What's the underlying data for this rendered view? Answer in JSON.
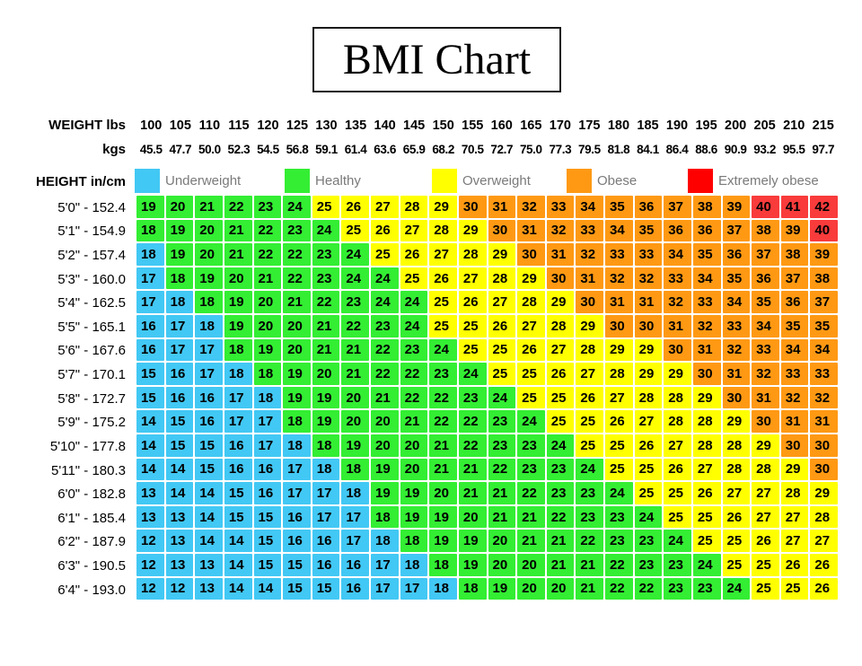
{
  "title": "BMI Chart",
  "header": {
    "weight_row_label": "WEIGHT lbs",
    "kg_row_label": "kgs",
    "height_row_label": "HEIGHT in/cm",
    "height_separator": "-"
  },
  "legend": [
    {
      "label": "Underweight",
      "color": "#42c8f4"
    },
    {
      "label": "Healthy",
      "color": "#33ee33"
    },
    {
      "label": "Overweight",
      "color": "#ffff00"
    },
    {
      "label": "Obese",
      "color": "#ff9913"
    },
    {
      "label": "Extremely obese",
      "color": "#ff0000"
    }
  ],
  "category_colors": {
    "b": "#42c8f4",
    "g": "#33ee33",
    "y": "#ffff00",
    "o": "#ff9913",
    "r": "#f93b3b"
  },
  "category_names": {
    "b": "underweight",
    "g": "healthy",
    "y": "overweight",
    "o": "obese",
    "r": "extremely-obese"
  },
  "chart_data": {
    "type": "heatmap",
    "title": "BMI Chart",
    "x_axis": {
      "primary_label": "WEIGHT lbs",
      "secondary_label": "kgs"
    },
    "y_axis": {
      "label": "HEIGHT in/cm"
    },
    "legend_entries": [
      "Underweight",
      "Healthy",
      "Overweight",
      "Obese",
      "Extremely obese"
    ],
    "weights_lbs": [
      100,
      105,
      110,
      115,
      120,
      125,
      130,
      135,
      140,
      145,
      150,
      155,
      160,
      165,
      170,
      175,
      180,
      185,
      190,
      195,
      200,
      205,
      210,
      215
    ],
    "weights_kgs": [
      "45.5",
      "47.7",
      "50.0",
      "52.3",
      "54.5",
      "56.8",
      "59.1",
      "61.4",
      "63.6",
      "65.9",
      "68.2",
      "70.5",
      "72.7",
      "75.0",
      "77.3",
      "79.5",
      "81.8",
      "84.1",
      "86.4",
      "88.6",
      "90.9",
      "93.2",
      "95.5",
      "97.7"
    ],
    "rows": [
      {
        "ft": "5'0\"",
        "cm": "152.4",
        "values": [
          19,
          20,
          21,
          22,
          23,
          24,
          25,
          26,
          27,
          28,
          29,
          30,
          31,
          32,
          33,
          34,
          35,
          36,
          37,
          38,
          39,
          40,
          41,
          42
        ],
        "cat": "ggggggyyyyyoooooooooorrr"
      },
      {
        "ft": "5'1\"",
        "cm": "154.9",
        "values": [
          18,
          19,
          20,
          21,
          22,
          23,
          24,
          25,
          26,
          27,
          28,
          29,
          30,
          31,
          32,
          33,
          34,
          35,
          36,
          36,
          37,
          38,
          39,
          40
        ],
        "cat": "gggggggyyyyyooooooooooor"
      },
      {
        "ft": "5'2\"",
        "cm": "157.4",
        "values": [
          18,
          19,
          20,
          21,
          22,
          22,
          23,
          24,
          25,
          26,
          27,
          28,
          29,
          30,
          31,
          32,
          33,
          33,
          34,
          35,
          36,
          37,
          38,
          39
        ],
        "cat": "bgggggggyyyyyooooooooooo"
      },
      {
        "ft": "5'3\"",
        "cm": "160.0",
        "values": [
          17,
          18,
          19,
          20,
          21,
          22,
          23,
          24,
          24,
          25,
          26,
          27,
          28,
          29,
          30,
          31,
          32,
          32,
          33,
          34,
          35,
          36,
          37,
          38
        ],
        "cat": "bggggggggyyyyyoooooooooo"
      },
      {
        "ft": "5'4\"",
        "cm": "162.5",
        "values": [
          17,
          18,
          18,
          19,
          20,
          21,
          22,
          23,
          24,
          24,
          25,
          26,
          27,
          28,
          29,
          30,
          31,
          31,
          32,
          33,
          34,
          35,
          36,
          37
        ],
        "cat": "bbggggggggyyyyyooooooooo"
      },
      {
        "ft": "5'5\"",
        "cm": "165.1",
        "values": [
          16,
          17,
          18,
          19,
          20,
          20,
          21,
          22,
          23,
          24,
          25,
          25,
          26,
          27,
          28,
          29,
          30,
          30,
          31,
          32,
          33,
          34,
          35,
          35
        ],
        "cat": "bbbgggggggyyyyyyoooooooo"
      },
      {
        "ft": "5'6\"",
        "cm": "167.6",
        "values": [
          16,
          17,
          17,
          18,
          19,
          20,
          21,
          21,
          22,
          23,
          24,
          25,
          25,
          26,
          27,
          28,
          29,
          29,
          30,
          31,
          32,
          33,
          34,
          34
        ],
        "cat": "bbbggggggggyyyyyyyoooooo"
      },
      {
        "ft": "5'7\"",
        "cm": "170.1",
        "values": [
          15,
          16,
          17,
          18,
          18,
          19,
          20,
          21,
          22,
          22,
          23,
          24,
          25,
          25,
          26,
          27,
          28,
          29,
          29,
          30,
          31,
          32,
          33,
          33
        ],
        "cat": "bbbbggggggggyyyyyyyooooo"
      },
      {
        "ft": "5'8\"",
        "cm": "172.7",
        "values": [
          15,
          16,
          16,
          17,
          18,
          19,
          19,
          20,
          21,
          22,
          22,
          23,
          24,
          25,
          25,
          26,
          27,
          28,
          28,
          29,
          30,
          31,
          32,
          32
        ],
        "cat": "bbbbbggggggggyyyyyyyoooo"
      },
      {
        "ft": "5'9\"",
        "cm": "175.2",
        "values": [
          14,
          15,
          16,
          17,
          17,
          18,
          19,
          20,
          20,
          21,
          22,
          22,
          23,
          24,
          25,
          25,
          26,
          27,
          28,
          28,
          29,
          30,
          31,
          31
        ],
        "cat": "bbbbbgggggggggyyyyyyyooo"
      },
      {
        "ft": "5'10\"",
        "cm": "177.8",
        "values": [
          14,
          15,
          15,
          16,
          17,
          18,
          18,
          19,
          20,
          20,
          21,
          22,
          23,
          23,
          24,
          25,
          25,
          26,
          27,
          28,
          28,
          29,
          30,
          30
        ],
        "cat": "bbbbbbgggggggggyyyyyyyoo"
      },
      {
        "ft": "5'11\"",
        "cm": "180.3",
        "values": [
          14,
          14,
          15,
          16,
          16,
          17,
          18,
          18,
          19,
          20,
          21,
          21,
          22,
          23,
          23,
          24,
          25,
          25,
          26,
          27,
          28,
          28,
          29,
          30
        ],
        "cat": "bbbbbbbgggggggggyyyyyyyo"
      },
      {
        "ft": "6'0\"",
        "cm": "182.8",
        "values": [
          13,
          14,
          14,
          15,
          16,
          17,
          17,
          18,
          19,
          19,
          20,
          21,
          21,
          22,
          23,
          23,
          24,
          25,
          25,
          26,
          27,
          27,
          28,
          29
        ],
        "cat": "bbbbbbbbgggggggggyyyyyyy"
      },
      {
        "ft": "6'1\"",
        "cm": "185.4",
        "values": [
          13,
          13,
          14,
          15,
          15,
          16,
          17,
          17,
          18,
          19,
          19,
          20,
          21,
          21,
          22,
          23,
          23,
          24,
          25,
          25,
          26,
          27,
          27,
          28
        ],
        "cat": "bbbbbbbbggggggggggyyyyyy"
      },
      {
        "ft": "6'2\"",
        "cm": "187.9",
        "values": [
          12,
          13,
          14,
          14,
          15,
          16,
          16,
          17,
          18,
          18,
          19,
          19,
          20,
          21,
          21,
          22,
          23,
          23,
          24,
          25,
          25,
          26,
          27,
          27
        ],
        "cat": "bbbbbbbbbggggggggggyyyyy"
      },
      {
        "ft": "6'3\"",
        "cm": "190.5",
        "values": [
          12,
          13,
          13,
          14,
          15,
          15,
          16,
          16,
          17,
          18,
          18,
          19,
          20,
          20,
          21,
          21,
          22,
          23,
          23,
          24,
          25,
          25,
          26,
          26
        ],
        "cat": "bbbbbbbbbbggggggggggyyyy"
      },
      {
        "ft": "6'4\"",
        "cm": "193.0",
        "values": [
          12,
          12,
          13,
          14,
          14,
          15,
          15,
          16,
          17,
          17,
          18,
          18,
          19,
          20,
          20,
          21,
          22,
          22,
          23,
          23,
          24,
          25,
          25,
          26
        ],
        "cat": "bbbbbbbbbbbggggggggggyyy"
      }
    ]
  }
}
